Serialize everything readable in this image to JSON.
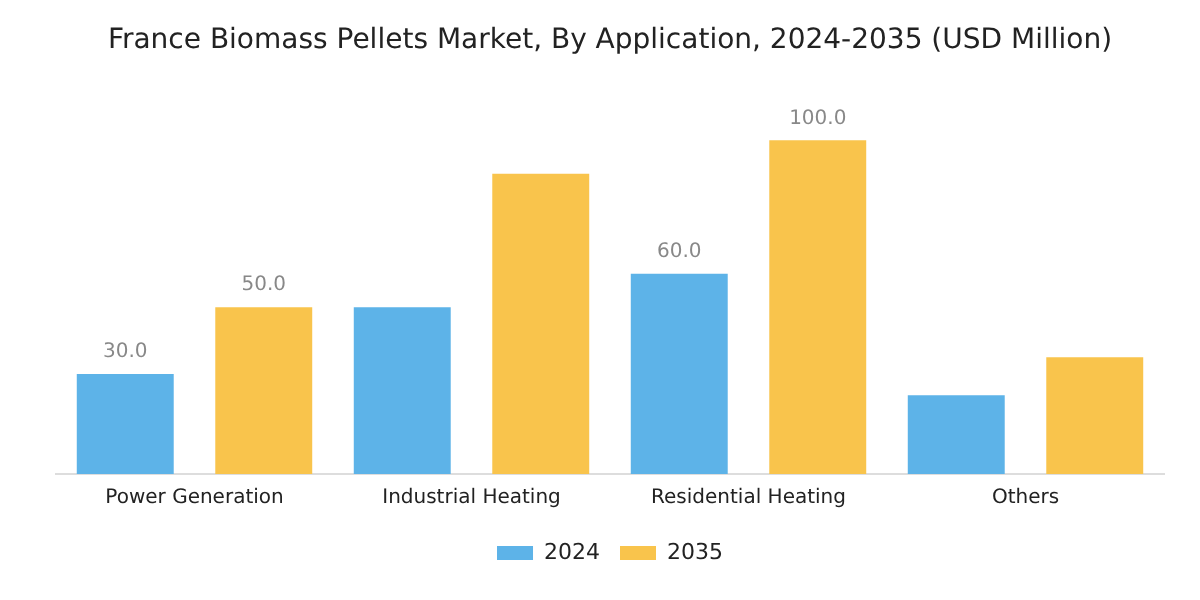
{
  "chart_data": {
    "type": "bar",
    "title": "France Biomass Pellets Market, By Application, 2024-2035 (USD Million)",
    "categories": [
      "Power Generation",
      "Industrial Heating",
      "Residential Heating",
      "Others"
    ],
    "series": [
      {
        "name": "2024",
        "color": "#5db3e8",
        "values": [
          30,
          50,
          60,
          23.6
        ],
        "value_labels": [
          "30.0",
          null,
          "60.0",
          null
        ]
      },
      {
        "name": "2035",
        "color": "#f9c44c",
        "values": [
          50,
          90,
          100,
          35
        ],
        "value_labels": [
          "50.0",
          null,
          "100.0",
          null
        ]
      }
    ],
    "legend": "bottom",
    "grid": false
  }
}
